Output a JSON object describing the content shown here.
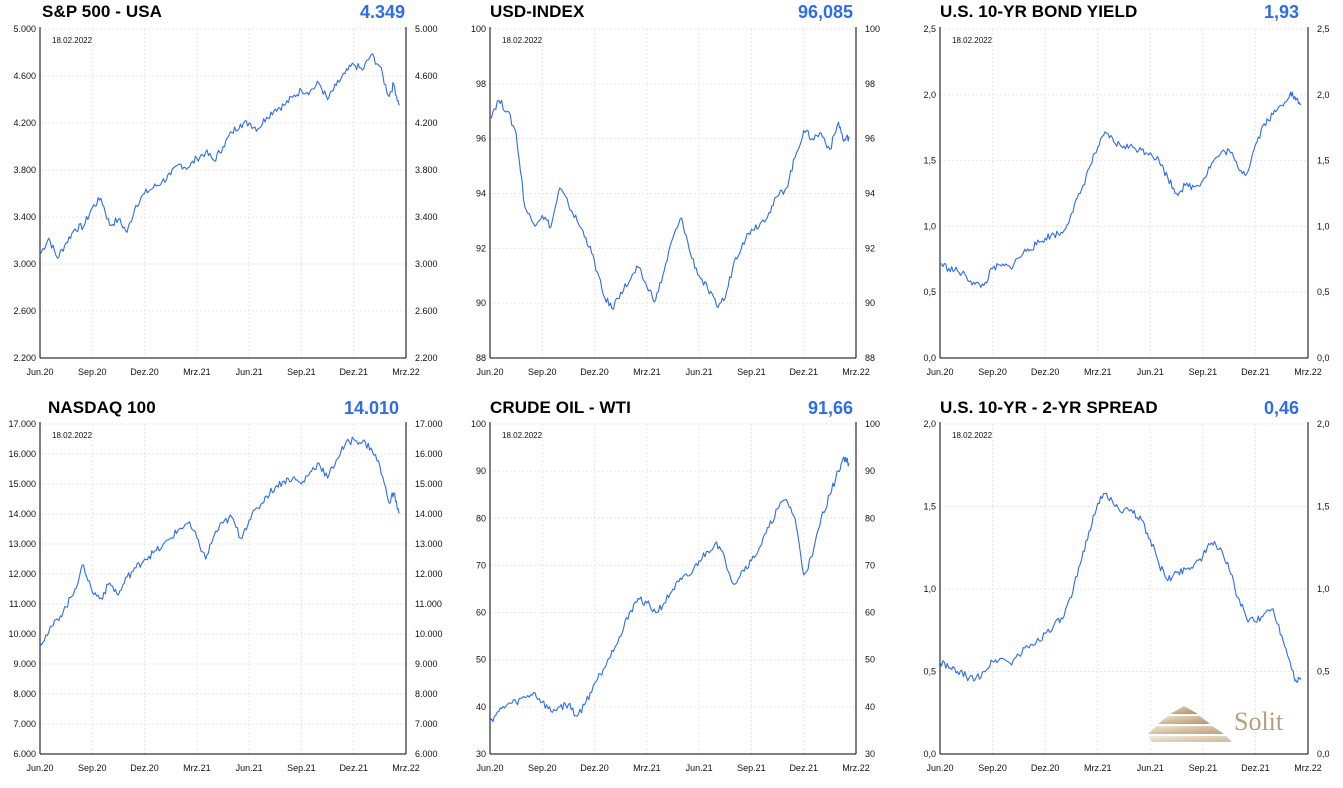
{
  "chart_data": [
    {
      "type": "line",
      "title": "S&P 500 - USA",
      "last_value": "4.349",
      "date": "18.02.2022",
      "yticks": [
        "2.200",
        "2.600",
        "3.000",
        "3.400",
        "3.800",
        "4.200",
        "4.600",
        "5.000"
      ],
      "ylim": [
        2200,
        5000
      ],
      "xticks": [
        "Jun.20",
        "Sep.20",
        "Dez.20",
        "Mrz.21",
        "Jun.21",
        "Sep.21",
        "Dez.21",
        "Mrz.22"
      ],
      "color": "#2e6de9",
      "x": [
        0,
        0.5,
        1,
        1.5,
        2,
        2.5,
        3,
        3.5,
        4,
        4.5,
        5,
        5.5,
        6,
        6.5,
        7,
        7.5,
        8,
        8.5,
        9,
        9.5,
        10,
        10.5,
        11,
        11.5,
        12,
        12.5,
        13,
        13.5,
        14,
        14.5,
        15,
        15.5,
        16,
        16.5,
        17,
        17.5,
        18,
        18.5,
        19,
        19.5,
        20,
        20.3,
        20.6
      ],
      "values": [
        3080,
        3220,
        3050,
        3180,
        3300,
        3320,
        3480,
        3560,
        3330,
        3380,
        3270,
        3500,
        3600,
        3650,
        3700,
        3760,
        3850,
        3820,
        3900,
        3950,
        3880,
        4000,
        4120,
        4190,
        4200,
        4150,
        4250,
        4320,
        4350,
        4420,
        4480,
        4470,
        4540,
        4400,
        4520,
        4620,
        4700,
        4650,
        4780,
        4680,
        4430,
        4530,
        4349
      ]
    },
    {
      "type": "line",
      "title": "USD-INDEX",
      "last_value": "96,085",
      "date": "18.02.2022",
      "yticks": [
        "88",
        "90",
        "92",
        "94",
        "96",
        "98",
        "100"
      ],
      "ylim": [
        88,
        100
      ],
      "xticks": [
        "Jun.20",
        "Sep.20",
        "Dez.20",
        "Mrz.21",
        "Jun.21",
        "Sep.21",
        "Dez.21",
        "Mrz.22"
      ],
      "color": "#2e6de9",
      "x": [
        0,
        0.5,
        1,
        1.5,
        2,
        2.5,
        3,
        3.5,
        4,
        4.5,
        5,
        5.5,
        6,
        6.5,
        7,
        7.5,
        8,
        8.5,
        9,
        9.5,
        10,
        10.5,
        11,
        11.5,
        12,
        12.5,
        13,
        13.5,
        14,
        14.5,
        15,
        15.5,
        16,
        16.5,
        17,
        17.5,
        18,
        18.5,
        19,
        19.5,
        20,
        20.3,
        20.6
      ],
      "values": [
        96.8,
        97.4,
        97.0,
        96.2,
        93.5,
        92.9,
        93.2,
        92.8,
        94.2,
        93.6,
        93.0,
        92.4,
        91.5,
        90.3,
        89.8,
        90.4,
        90.8,
        91.3,
        90.6,
        90.1,
        91.2,
        92.4,
        93.1,
        91.8,
        91.0,
        90.5,
        89.9,
        90.2,
        91.5,
        92.2,
        92.7,
        92.9,
        93.3,
        93.9,
        94.2,
        95.3,
        96.3,
        96.0,
        96.2,
        95.6,
        96.6,
        95.9,
        96.085
      ]
    },
    {
      "type": "line",
      "title": "U.S. 10-YR BOND YIELD",
      "last_value": "1,93",
      "date": "18.02.2022",
      "yticks": [
        "0,0",
        "0,5",
        "1,0",
        "1,5",
        "2,0",
        "2,5"
      ],
      "ylim": [
        0,
        2.5
      ],
      "xticks": [
        "Jun.20",
        "Sep.20",
        "Dez.20",
        "Mrz.21",
        "Jun.21",
        "Sep.21",
        "Dez.21",
        "Mrz.22"
      ],
      "color": "#2e6de9",
      "x": [
        0,
        0.5,
        1,
        1.5,
        2,
        2.5,
        3,
        3.5,
        4,
        4.5,
        5,
        5.5,
        6,
        6.5,
        7,
        7.5,
        8,
        8.5,
        9,
        9.5,
        10,
        10.5,
        11,
        11.5,
        12,
        12.5,
        13,
        13.5,
        14,
        14.5,
        15,
        15.5,
        16,
        16.5,
        17,
        17.5,
        18,
        18.5,
        19,
        19.5,
        20,
        20.3,
        20.6
      ],
      "values": [
        0.72,
        0.68,
        0.66,
        0.62,
        0.56,
        0.55,
        0.68,
        0.7,
        0.69,
        0.76,
        0.83,
        0.86,
        0.91,
        0.94,
        0.95,
        1.1,
        1.25,
        1.44,
        1.6,
        1.71,
        1.63,
        1.61,
        1.6,
        1.58,
        1.56,
        1.5,
        1.37,
        1.25,
        1.31,
        1.3,
        1.35,
        1.48,
        1.55,
        1.58,
        1.45,
        1.4,
        1.62,
        1.78,
        1.85,
        1.92,
        2.02,
        1.96,
        1.93
      ]
    },
    {
      "type": "line",
      "title": "NASDAQ 100",
      "last_value": "14.010",
      "date": "18.02.2022",
      "yticks": [
        "6.000",
        "7.000",
        "8.000",
        "9.000",
        "10.000",
        "11.000",
        "12.000",
        "13.000",
        "14.000",
        "15.000",
        "16.000",
        "17.000"
      ],
      "ylim": [
        6000,
        17000
      ],
      "xticks": [
        "Jun.20",
        "Sep.20",
        "Dez.20",
        "Mrz.21",
        "Jun.21",
        "Sep.21",
        "Dez.21",
        "Mrz.22"
      ],
      "color": "#2e6de9",
      "x": [
        0,
        0.5,
        1,
        1.5,
        2,
        2.5,
        3,
        3.5,
        4,
        4.5,
        5,
        5.5,
        6,
        6.5,
        7,
        7.5,
        8,
        8.5,
        9,
        9.5,
        10,
        10.5,
        11,
        11.5,
        12,
        12.5,
        13,
        13.5,
        14,
        14.5,
        15,
        15.5,
        16,
        16.5,
        17,
        17.5,
        18,
        18.5,
        19,
        19.5,
        20,
        20.3,
        20.6
      ],
      "values": [
        9700,
        10050,
        10500,
        10900,
        11500,
        12300,
        11400,
        11200,
        11700,
        11300,
        11900,
        12200,
        12500,
        12700,
        12900,
        13200,
        13500,
        13700,
        13200,
        12500,
        13300,
        13700,
        13900,
        13200,
        13800,
        14200,
        14600,
        14900,
        15100,
        15200,
        15000,
        15400,
        15700,
        15200,
        15800,
        16300,
        16500,
        16400,
        16200,
        15600,
        14400,
        14700,
        14010
      ]
    },
    {
      "type": "line",
      "title": "CRUDE OIL - WTI",
      "last_value": "91,66",
      "date": "18.02.2022",
      "yticks": [
        "30",
        "40",
        "50",
        "60",
        "70",
        "80",
        "90",
        "100"
      ],
      "ylim": [
        30,
        100
      ],
      "xticks": [
        "Jun.20",
        "Sep.20",
        "Dez.20",
        "Mrz.21",
        "Jun.21",
        "Sep.21",
        "Dez.21",
        "Mrz.22"
      ],
      "color": "#2e6de9",
      "x": [
        0,
        0.5,
        1,
        1.5,
        2,
        2.5,
        3,
        3.5,
        4,
        4.5,
        5,
        5.5,
        6,
        6.5,
        7,
        7.5,
        8,
        8.5,
        9,
        9.5,
        10,
        10.5,
        11,
        11.5,
        12,
        12.5,
        13,
        13.5,
        14,
        14.5,
        15,
        15.5,
        16,
        16.5,
        17,
        17.5,
        18,
        18.5,
        19,
        19.5,
        20,
        20.3,
        20.6
      ],
      "values": [
        37,
        39,
        40.5,
        41,
        42,
        43,
        41,
        39,
        40,
        40.5,
        38,
        41,
        45,
        48,
        52,
        55,
        60,
        63,
        62,
        60,
        62,
        65,
        67,
        68,
        71,
        73,
        75,
        71,
        66,
        69,
        71,
        74,
        78,
        82,
        84,
        80,
        68,
        72,
        80,
        85,
        90,
        93,
        91.66
      ]
    },
    {
      "type": "line",
      "title": "U.S. 10-YR - 2-YR SPREAD",
      "last_value": "0,46",
      "date": "18.02.2022",
      "yticks": [
        "0,0",
        "0,5",
        "1,0",
        "1,5",
        "2,0"
      ],
      "ylim": [
        0,
        2.0
      ],
      "xticks": [
        "Jun.20",
        "Sep.20",
        "Dez.20",
        "Mrz.21",
        "Jun.21",
        "Sep.21",
        "Dez.21",
        "Mrz.22"
      ],
      "color": "#2e6de9",
      "x": [
        0,
        0.5,
        1,
        1.5,
        2,
        2.5,
        3,
        3.5,
        4,
        4.5,
        5,
        5.5,
        6,
        6.5,
        7,
        7.5,
        8,
        8.5,
        9,
        9.5,
        10,
        10.5,
        11,
        11.5,
        12,
        12.5,
        13,
        13.5,
        14,
        14.5,
        15,
        15.5,
        16,
        16.5,
        17,
        17.5,
        18,
        18.5,
        19,
        19.5,
        20,
        20.3,
        20.6
      ],
      "values": [
        0.56,
        0.52,
        0.5,
        0.47,
        0.45,
        0.5,
        0.56,
        0.58,
        0.55,
        0.6,
        0.65,
        0.68,
        0.73,
        0.78,
        0.82,
        0.95,
        1.15,
        1.35,
        1.52,
        1.58,
        1.5,
        1.48,
        1.46,
        1.42,
        1.3,
        1.15,
        1.05,
        1.1,
        1.12,
        1.15,
        1.2,
        1.28,
        1.25,
        1.12,
        0.95,
        0.82,
        0.8,
        0.85,
        0.88,
        0.72,
        0.55,
        0.45,
        0.46
      ]
    }
  ],
  "logo": {
    "text": "Solit",
    "color": "#b79f78"
  }
}
